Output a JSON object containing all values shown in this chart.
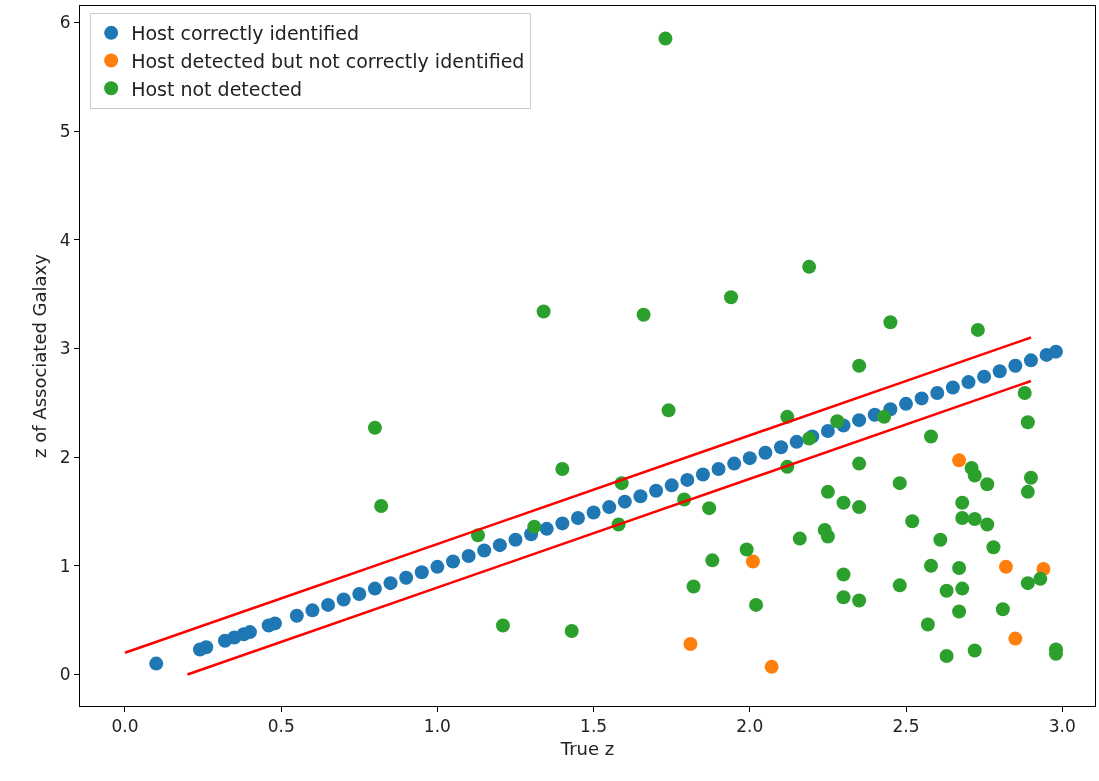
{
  "chart_data": {
    "type": "scatter",
    "xlabel": "True z",
    "ylabel": "z of Associated Galaxy",
    "xlim": [
      -0.144,
      3.105
    ],
    "ylim": [
      -0.29,
      6.15
    ],
    "xticks": [
      {
        "value": 0,
        "label": "0.0"
      },
      {
        "value": 0.5,
        "label": "0.5"
      },
      {
        "value": 1,
        "label": "1.0"
      },
      {
        "value": 1.5,
        "label": "1.5"
      },
      {
        "value": 2,
        "label": "2.0"
      },
      {
        "value": 2.5,
        "label": "2.5"
      },
      {
        "value": 3,
        "label": "3.0"
      }
    ],
    "yticks": [
      0,
      1,
      2,
      3,
      4,
      5,
      6
    ],
    "legend": "top left",
    "marker": "circle",
    "series": [
      {
        "name": "Host correctly identified",
        "color": "#1f77b4",
        "x": [
          0.1,
          0.24,
          0.26,
          0.32,
          0.35,
          0.38,
          0.4,
          0.46,
          0.48,
          0.55,
          0.6,
          0.65,
          0.7,
          0.75,
          0.8,
          0.85,
          0.9,
          0.95,
          1.0,
          1.05,
          1.1,
          1.15,
          1.2,
          1.25,
          1.3,
          1.35,
          1.4,
          1.45,
          1.5,
          1.55,
          1.6,
          1.65,
          1.7,
          1.75,
          1.8,
          1.85,
          1.9,
          1.95,
          2.0,
          2.05,
          2.1,
          2.15,
          2.2,
          2.25,
          2.3,
          2.35,
          2.4,
          2.45,
          2.5,
          2.55,
          2.6,
          2.65,
          2.7,
          2.75,
          2.8,
          2.85,
          2.9,
          2.95,
          2.98
        ],
        "values": [
          0.1,
          0.23,
          0.25,
          0.31,
          0.34,
          0.37,
          0.39,
          0.45,
          0.47,
          0.54,
          0.59,
          0.64,
          0.69,
          0.74,
          0.79,
          0.84,
          0.89,
          0.94,
          0.99,
          1.04,
          1.09,
          1.14,
          1.19,
          1.24,
          1.29,
          1.34,
          1.39,
          1.44,
          1.49,
          1.54,
          1.59,
          1.64,
          1.69,
          1.74,
          1.79,
          1.84,
          1.89,
          1.94,
          1.99,
          2.04,
          2.09,
          2.14,
          2.19,
          2.24,
          2.29,
          2.34,
          2.39,
          2.44,
          2.49,
          2.54,
          2.59,
          2.64,
          2.69,
          2.74,
          2.79,
          2.84,
          2.89,
          2.94,
          2.97
        ]
      },
      {
        "name": "Host detected but not correctly identified",
        "color": "#ff7f0e",
        "x": [
          1.81,
          2.01,
          2.07,
          2.67,
          2.82,
          2.85,
          2.94
        ],
        "values": [
          0.28,
          1.04,
          0.07,
          1.97,
          0.99,
          0.33,
          0.97
        ]
      },
      {
        "name": "Host not detected",
        "color": "#2ca02c",
        "x": [
          0.8,
          0.82,
          1.13,
          1.21,
          1.31,
          1.34,
          1.4,
          1.43,
          1.58,
          1.59,
          1.66,
          1.73,
          1.74,
          1.79,
          1.82,
          1.87,
          1.88,
          1.94,
          1.99,
          2.02,
          2.12,
          2.12,
          2.16,
          2.19,
          2.19,
          2.24,
          2.25,
          2.25,
          2.28,
          2.3,
          2.3,
          2.3,
          2.35,
          2.35,
          2.35,
          2.35,
          2.43,
          2.45,
          2.48,
          2.48,
          2.52,
          2.58,
          2.57,
          2.58,
          2.61,
          2.63,
          2.63,
          2.67,
          2.67,
          2.68,
          2.68,
          2.68,
          2.71,
          2.72,
          2.72,
          2.72,
          2.73,
          2.76,
          2.76,
          2.78,
          2.81,
          2.88,
          2.89,
          2.89,
          2.9,
          2.89,
          2.93,
          2.98,
          2.98
        ],
        "values": [
          2.27,
          1.55,
          1.28,
          0.45,
          1.36,
          3.34,
          1.89,
          0.4,
          1.38,
          1.76,
          3.31,
          5.85,
          2.43,
          1.61,
          0.81,
          1.53,
          1.05,
          3.47,
          1.15,
          0.64,
          2.37,
          1.91,
          1.25,
          3.75,
          2.17,
          1.33,
          1.27,
          1.68,
          2.33,
          0.92,
          1.58,
          0.71,
          1.94,
          1.54,
          2.84,
          0.68,
          2.37,
          3.24,
          1.76,
          0.82,
          1.41,
          2.19,
          0.46,
          1.0,
          1.24,
          0.77,
          0.17,
          0.98,
          0.58,
          1.58,
          1.44,
          0.79,
          1.9,
          1.83,
          1.43,
          0.22,
          3.17,
          1.75,
          1.38,
          1.17,
          0.6,
          2.59,
          2.32,
          1.68,
          1.81,
          0.84,
          0.88,
          0.23,
          0.19
        ]
      },
      {
        "type": "line",
        "color": "#ff0000",
        "marker": "none",
        "x": [
          0.0,
          2.9
        ],
        "values": [
          0.2,
          3.1
        ]
      },
      {
        "type": "line",
        "color": "#ff0000",
        "marker": "none",
        "x": [
          0.2,
          2.9
        ],
        "values": [
          0.0,
          2.7
        ]
      }
    ]
  }
}
